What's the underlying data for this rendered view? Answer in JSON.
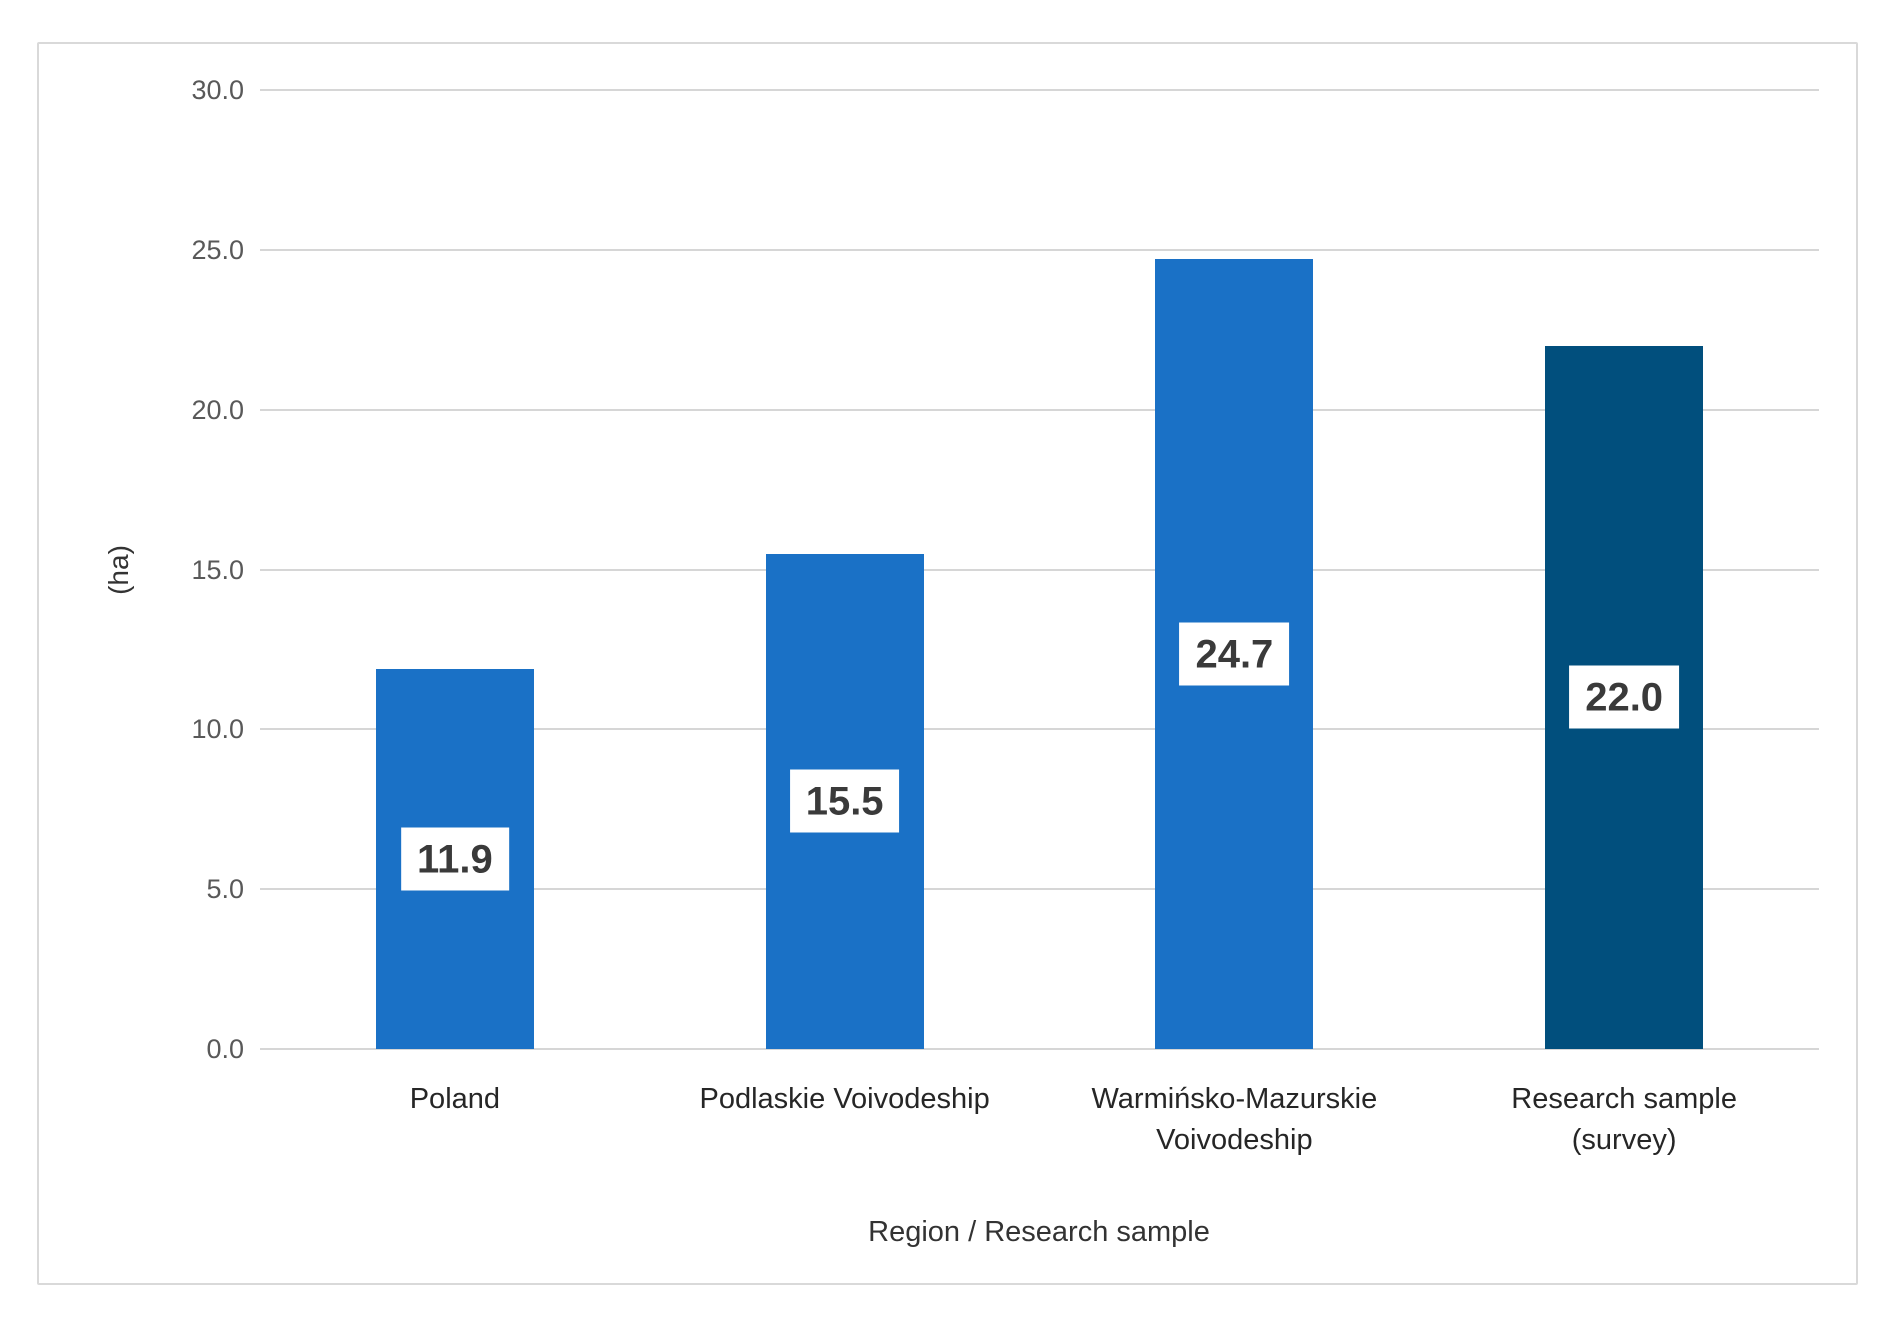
{
  "chart_data": {
    "type": "bar",
    "title": "",
    "xlabel": "Region / Research sample",
    "ylabel": "(ha)",
    "categories": [
      "Poland",
      "Podlaskie Voivodeship",
      "Warmińsko-Mazurskie Voivodeship",
      "Research sample (survey)"
    ],
    "category_display_lines": [
      [
        "Poland"
      ],
      [
        "Podlaskie Voivodeship"
      ],
      [
        "Warmińsko-Mazurskie",
        "Voivodeship"
      ],
      [
        "Research sample",
        "(survey)"
      ]
    ],
    "values": [
      11.9,
      15.5,
      24.7,
      22.0
    ],
    "value_labels": [
      "11.9",
      "15.5",
      "24.7",
      "22.0"
    ],
    "bar_colors": [
      "#1a71c6",
      "#1a71c6",
      "#1a71c6",
      "#014f7d"
    ],
    "ylim": [
      0,
      30
    ],
    "ytick_interval": 5,
    "ytick_labels": [
      "0.0",
      "5.0",
      "10.0",
      "15.0",
      "20.0",
      "25.0",
      "30.0"
    ],
    "grid": true,
    "legend": false,
    "colors": {
      "background": "#ffffff",
      "frame_border": "#d9d9d9",
      "gridline": "#d6d6d6",
      "tick_text": "#595959",
      "category_text": "#262626",
      "axis_title_text": "#333333",
      "data_label_text": "#3a3a3a",
      "data_label_bg": "#ffffff"
    }
  }
}
